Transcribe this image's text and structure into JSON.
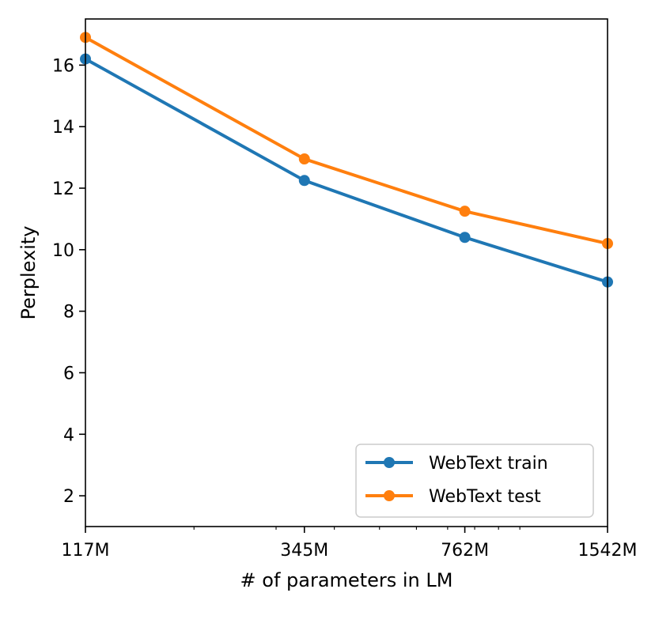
{
  "chart_data": {
    "type": "line",
    "title": "",
    "xlabel": "# of parameters in LM",
    "ylabel": "Perplexity",
    "x_scale": "log",
    "x": [
      117,
      345,
      762,
      1542
    ],
    "x_tick_labels": [
      "117M",
      "345M",
      "762M",
      "1542M"
    ],
    "xlim": [
      117,
      1542
    ],
    "ylim": [
      1.0,
      17.5
    ],
    "y_ticks": [
      2,
      4,
      6,
      8,
      10,
      12,
      14,
      16
    ],
    "grid": false,
    "legend_position": "lower-right",
    "series": [
      {
        "name": "WebText train",
        "color": "#1f77b4",
        "values": [
          16.2,
          12.25,
          10.4,
          8.95
        ]
      },
      {
        "name": "WebText test",
        "color": "#ff7f0e",
        "values": [
          16.9,
          12.95,
          11.25,
          10.2
        ]
      }
    ]
  }
}
